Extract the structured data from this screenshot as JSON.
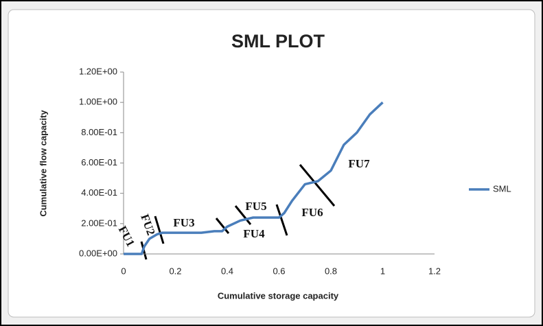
{
  "chart_data": {
    "type": "line",
    "title": "SML PLOT",
    "x_label": "Cumulative storage capacity",
    "y_label": "Cumulative flow capacity",
    "series": [
      {
        "name": "SML",
        "color": "#4a7ebb",
        "x": [
          0,
          0.07,
          0.08,
          0.1,
          0.13,
          0.15,
          0.3,
          0.35,
          0.38,
          0.4,
          0.45,
          0.5,
          0.6,
          0.62,
          0.65,
          0.7,
          0.75,
          0.8,
          0.85,
          0.9,
          0.95,
          1
        ],
        "values": [
          0,
          0,
          0.05,
          0.1,
          0.13,
          0.14,
          0.14,
          0.15,
          0.15,
          0.18,
          0.22,
          0.24,
          0.24,
          0.27,
          0.35,
          0.46,
          0.48,
          0.55,
          0.72,
          0.8,
          0.92,
          1
        ]
      }
    ],
    "annotations": [
      "FU1",
      "FU2",
      "FU3",
      "FU4",
      "FU5",
      "FU6",
      "FU7"
    ],
    "xlim": [
      0,
      1.2
    ],
    "xticks": [
      0,
      0.2,
      0.4,
      0.6,
      0.8,
      1,
      1.2
    ],
    "ylim": [
      0,
      1.2
    ],
    "yticks": [
      {
        "value": 0,
        "label": "0.00E+00"
      },
      {
        "value": 0.2,
        "label": "2.00E-01"
      },
      {
        "value": 0.4,
        "label": "4.00E-01"
      },
      {
        "value": 0.6,
        "label": "6.00E-01"
      },
      {
        "value": 0.8,
        "label": "8.00E-01"
      },
      {
        "value": 1,
        "label": "1.00E+00"
      },
      {
        "value": 1.2,
        "label": "1.20E+00"
      }
    ],
    "grid": false,
    "legend": "right"
  }
}
